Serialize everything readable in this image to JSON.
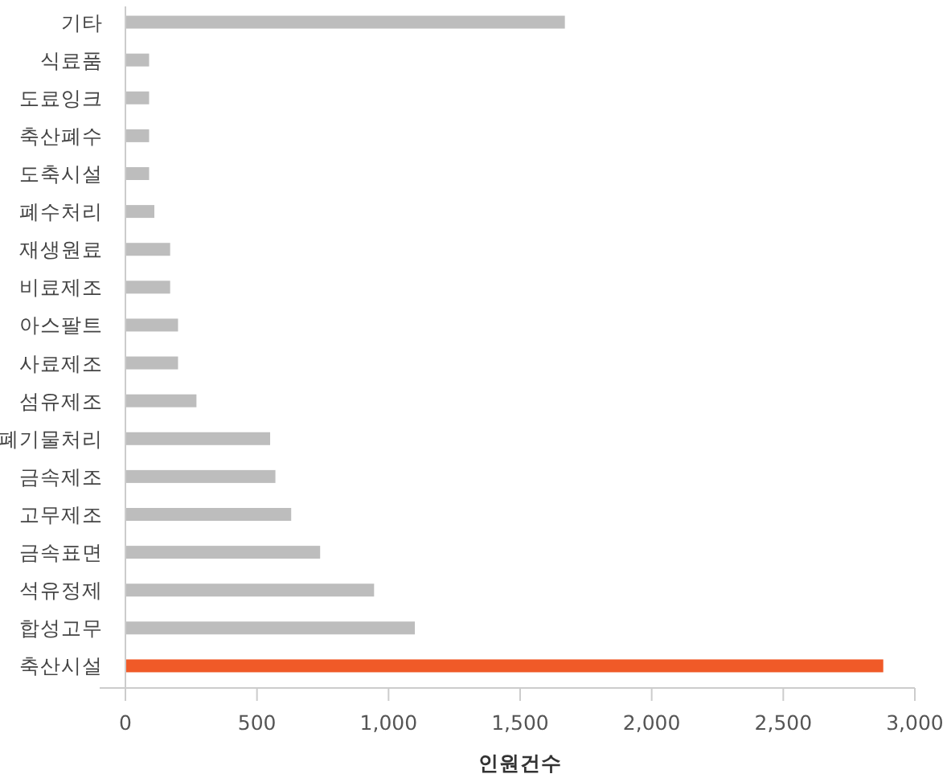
{
  "chart_data": {
    "type": "bar",
    "orientation": "horizontal",
    "xlabel": "인원건수",
    "categories": [
      "기타",
      "식료품",
      "도료잉크",
      "축산폐수",
      "도축시설",
      "폐수처리",
      "재생원료",
      "비료제조",
      "아스팔트",
      "사료제조",
      "섬유제조",
      "폐기물처리",
      "금속제조",
      "고무제조",
      "금속표면",
      "석유정제",
      "합성고무",
      "축산시설"
    ],
    "values": [
      1670,
      90,
      90,
      90,
      90,
      110,
      170,
      170,
      200,
      200,
      270,
      550,
      570,
      630,
      740,
      945,
      1100,
      2880
    ],
    "colors": [
      "#bdbdbd",
      "#bdbdbd",
      "#bdbdbd",
      "#bdbdbd",
      "#bdbdbd",
      "#bdbdbd",
      "#bdbdbd",
      "#bdbdbd",
      "#bdbdbd",
      "#bdbdbd",
      "#bdbdbd",
      "#bdbdbd",
      "#bdbdbd",
      "#bdbdbd",
      "#bdbdbd",
      "#bdbdbd",
      "#bdbdbd",
      "#f05a28"
    ],
    "xlim": [
      0,
      3000
    ],
    "xticks": [
      0,
      500,
      {
        "value": 1000,
        "label": "1,000"
      },
      {
        "value": 1500,
        "label": "1,500"
      },
      {
        "value": 2000,
        "label": "2,000"
      },
      {
        "value": 2500,
        "label": "2,500"
      },
      {
        "value": 3000,
        "label": "3,000"
      }
    ]
  }
}
